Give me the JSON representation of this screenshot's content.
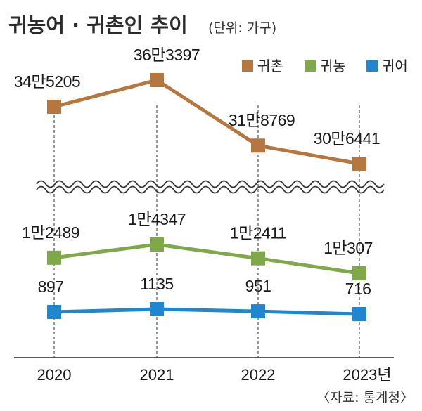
{
  "chart_data": {
    "type": "line",
    "title": "귀농어 · 귀촌인 추이",
    "unit": "(단위: 가구)",
    "source": "〈자료: 통계청〉",
    "categories": [
      "2020",
      "2021",
      "2022",
      "2023년"
    ],
    "axis_break": true,
    "series": [
      {
        "name": "귀촌",
        "color": "#b5773f",
        "values": [
          345205,
          363397,
          318769,
          306441
        ],
        "labels": [
          "34만5205",
          "36만3397",
          "31만8769",
          "30만6441"
        ]
      },
      {
        "name": "귀농",
        "color": "#7ea84a",
        "values": [
          12489,
          14347,
          12411,
          10307
        ],
        "labels": [
          "1만2489",
          "1만4347",
          "1만2411",
          "1만307"
        ]
      },
      {
        "name": "귀어",
        "color": "#1f86cf",
        "values": [
          897,
          1135,
          951,
          716
        ],
        "labels": [
          "897",
          "1135",
          "951",
          "716"
        ]
      }
    ]
  }
}
